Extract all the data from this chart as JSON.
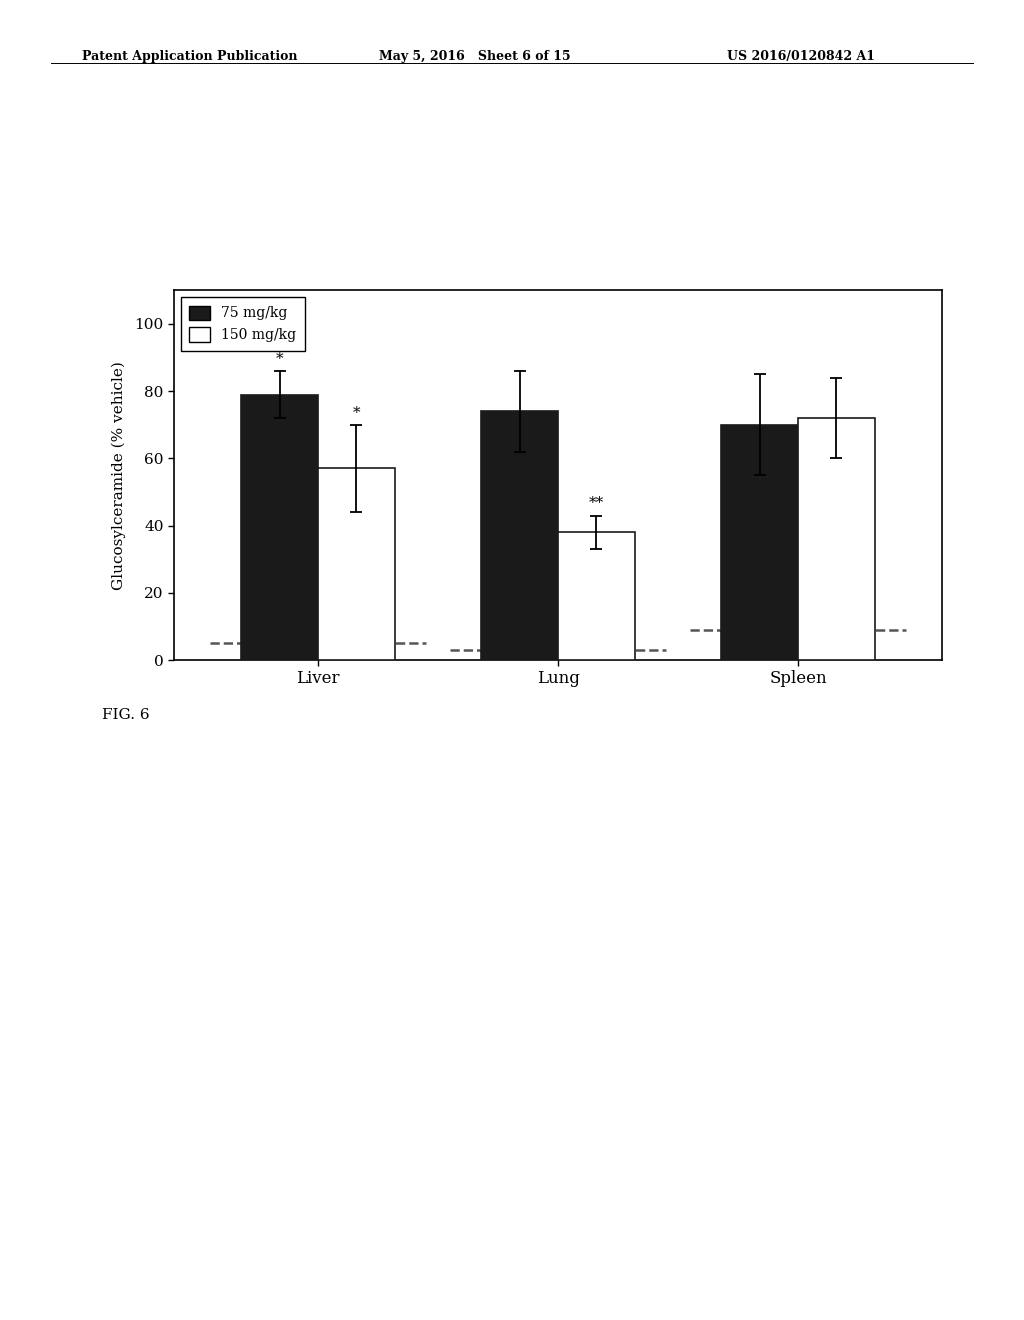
{
  "categories": [
    "Liver",
    "Lung",
    "Spleen"
  ],
  "bar75_values": [
    79,
    74,
    70
  ],
  "bar150_values": [
    57,
    38,
    72
  ],
  "bar75_errors": [
    7,
    12,
    15
  ],
  "bar150_errors": [
    13,
    5,
    12
  ],
  "dashed_line_values": [
    5,
    3,
    9
  ],
  "bar75_color": "#1a1a1a",
  "bar150_color": "#ffffff",
  "bar_edge_color": "#1a1a1a",
  "dashed_line_color": "#555555",
  "ylabel": "Glucosylceramide (% vehicle)",
  "ylim": [
    0,
    110
  ],
  "yticks": [
    0,
    20,
    40,
    60,
    80,
    100
  ],
  "legend_labels": [
    "75 mg/kg",
    "150 mg/kg"
  ],
  "significance_75": [
    "*",
    null,
    null
  ],
  "significance_150": [
    "*",
    "**",
    null
  ],
  "bar_width": 0.32,
  "title_left": "Patent Application Publication",
  "title_mid": "May 5, 2016   Sheet 6 of 15",
  "title_right": "US 2016/0120842 A1",
  "fig_label": "FIG. 6"
}
